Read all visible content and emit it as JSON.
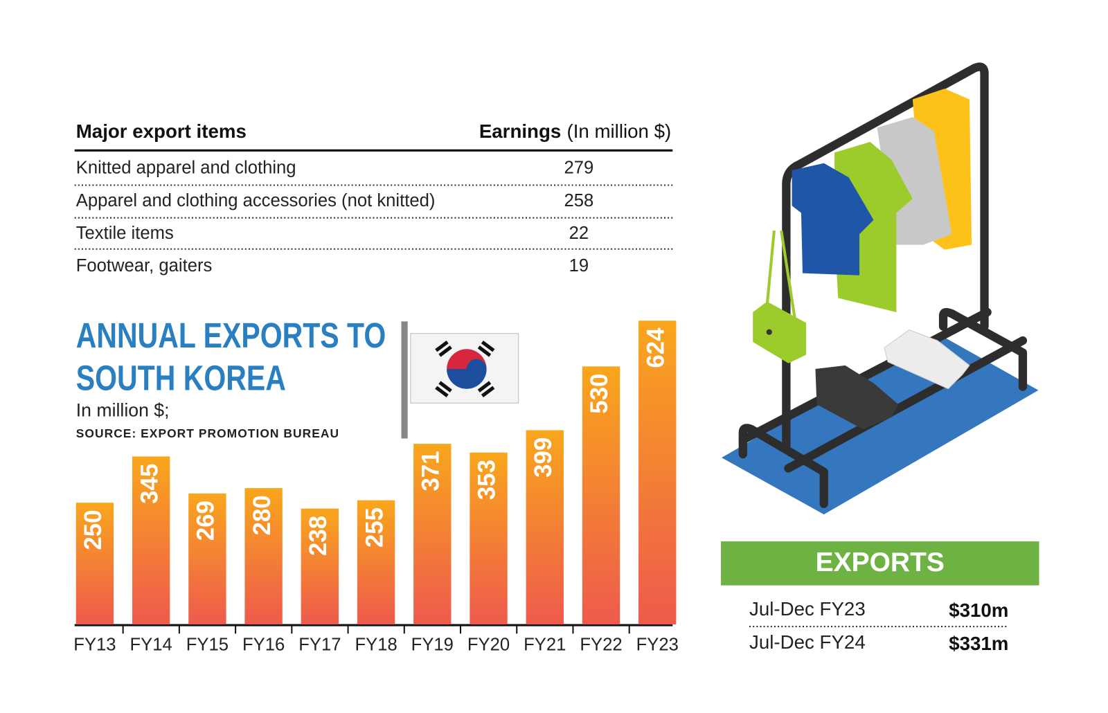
{
  "table": {
    "header": [
      "Major export items",
      "Earnings",
      "(In million $)"
    ],
    "rows": [
      [
        "Knitted apparel and clothing",
        279
      ],
      [
        "Apparel and clothing accessories (not knitted)",
        258
      ],
      [
        "Textile items",
        22
      ],
      [
        "Footwear, gaiters",
        19
      ]
    ]
  },
  "chart_data": {
    "type": "bar",
    "title": "ANNUAL EXPORTS TO SOUTH KOREA",
    "subtitle": "In million $;",
    "source": "SOURCE: EXPORT PROMOTION BUREAU",
    "categories": [
      "FY13",
      "FY14",
      "FY15",
      "FY16",
      "FY17",
      "FY18",
      "FY19",
      "FY20",
      "FY21",
      "FY22",
      "FY23"
    ],
    "values": [
      250,
      345,
      269,
      280,
      238,
      255,
      371,
      353,
      399,
      530,
      624
    ],
    "gradient": [
      "#f9a61c",
      "#ee5a4d"
    ]
  },
  "exports": {
    "title": "EXPORTS",
    "rows": [
      [
        "Jul-Dec FY23",
        "$310m"
      ],
      [
        "Jul-Dec FY24",
        "$331m"
      ]
    ]
  }
}
